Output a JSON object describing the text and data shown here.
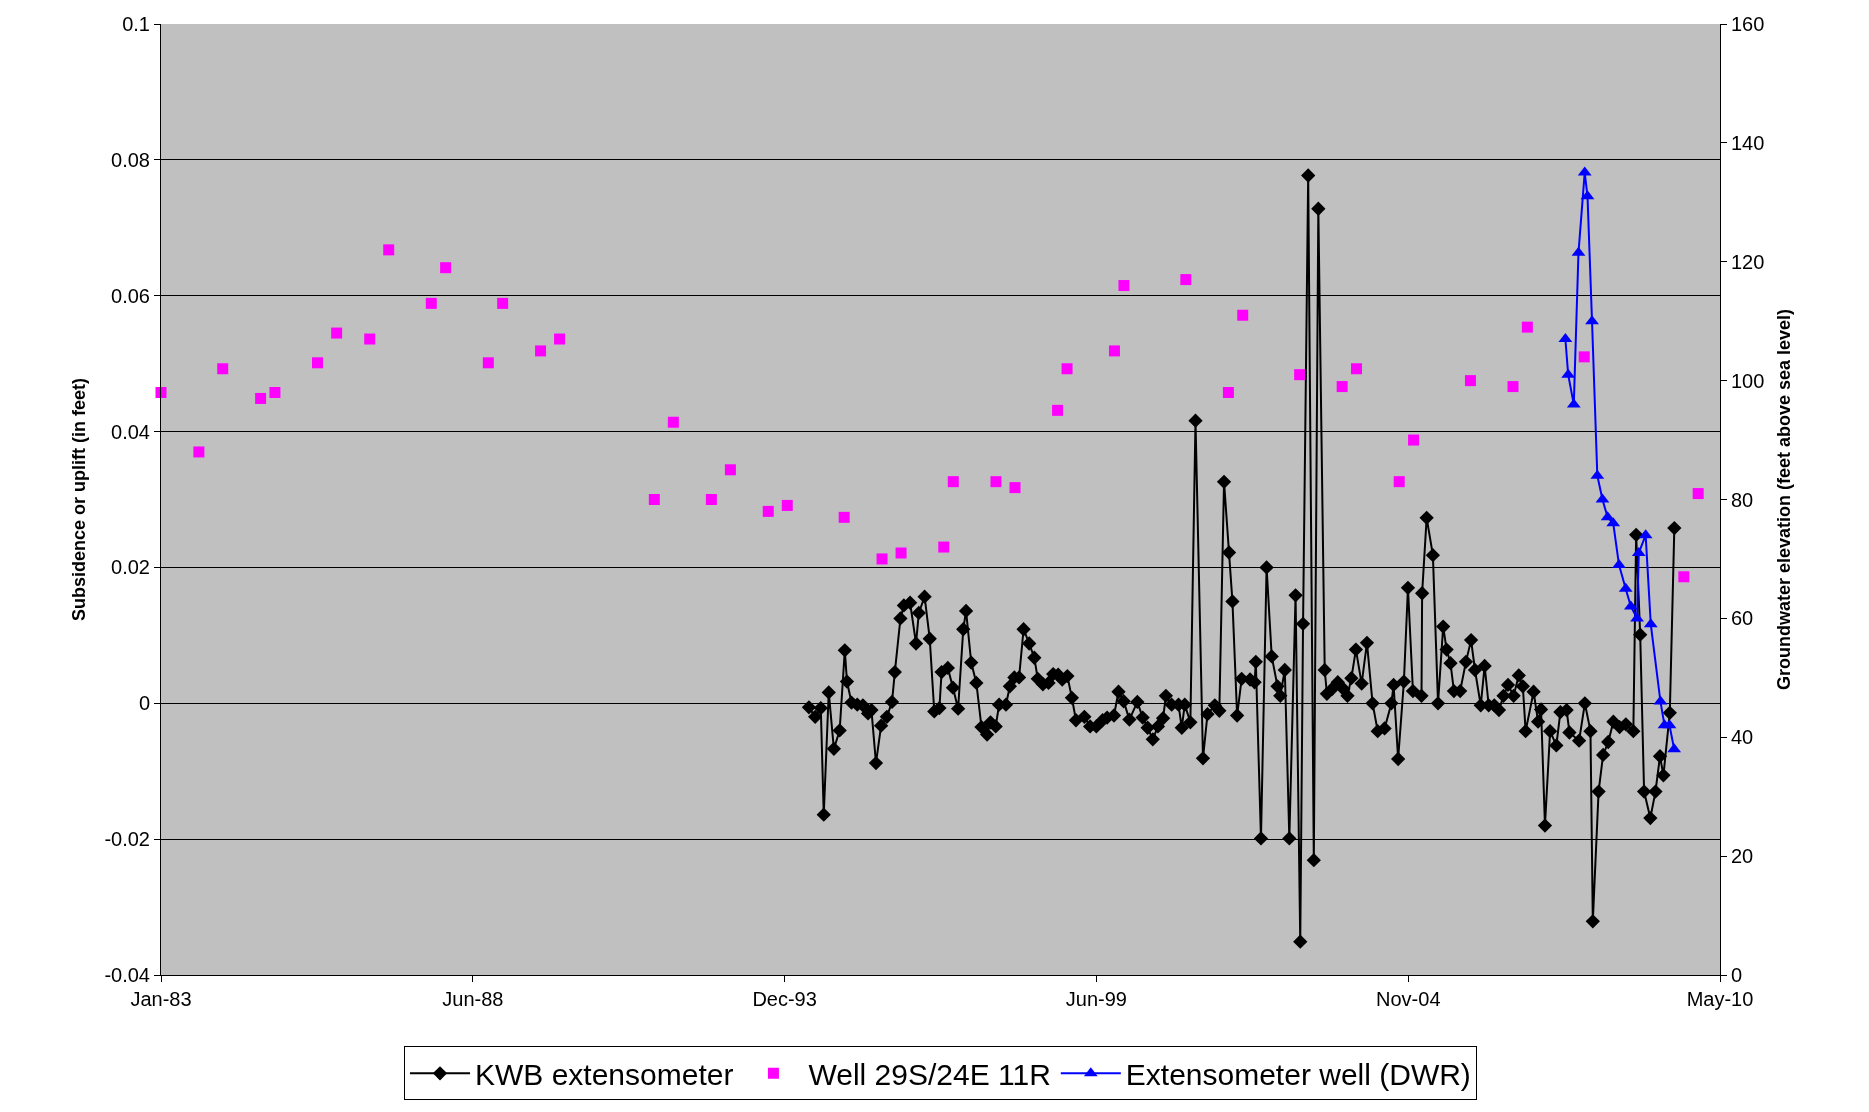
{
  "chart_data": {
    "type": "line",
    "xlabel": null,
    "ylabel": "Subsidence or uplift (in feet)",
    "y2label": "Groundwater elevation (feet above sea level)",
    "xlim": [
      "1983-01-01",
      "2010-05-21"
    ],
    "xticks": [
      {
        "value": "1983-01-01",
        "label": "Jan-83"
      },
      {
        "value": "1988-06-24",
        "label": "Jun-88"
      },
      {
        "value": "1993-12-15",
        "label": "Dec-93"
      },
      {
        "value": "1999-06-07",
        "label": "Jun-99"
      },
      {
        "value": "2004-11-28",
        "label": "Nov-04"
      },
      {
        "value": "2010-05-21",
        "label": "May-10"
      }
    ],
    "ylim": [
      -0.04,
      0.1
    ],
    "yticks": [
      -0.04,
      -0.02,
      0,
      0.02,
      0.04,
      0.06,
      0.08,
      0.1
    ],
    "y2lim": [
      0,
      160
    ],
    "y2ticks": [
      0,
      20,
      40,
      60,
      80,
      100,
      120,
      140,
      160
    ],
    "grid": "y",
    "legend": "bottom",
    "series": [
      {
        "name": "KWB extensometer",
        "marker": "diamond",
        "line_style": "solid",
        "color": "#000000",
        "x": [
          "1994-05-20",
          "1994-06-29",
          "1994-08-04",
          "1994-08-23",
          "1994-09-24",
          "1994-10-27",
          "1994-12-03",
          "1995-01-05",
          "1995-01-19",
          "1995-02-17",
          "1995-03-26",
          "1995-05-01",
          "1995-06-03",
          "1995-06-25",
          "1995-07-24",
          "1995-08-26",
          "1995-10-02",
          "1995-11-04",
          "1995-11-22",
          "1995-12-28",
          "1996-01-19",
          "1996-02-28",
          "1996-04-06",
          "1996-04-24",
          "1996-05-31",
          "1996-07-03",
          "1996-08-01",
          "1996-09-03",
          "1996-09-17",
          "1996-10-27",
          "1996-11-29",
          "1997-01-01",
          "1997-02-03",
          "1997-02-21",
          "1997-03-26",
          "1997-04-28",
          "1997-05-31",
          "1997-07-06",
          "1997-07-28",
          "1997-08-30",
          "1997-09-21",
          "1997-11-04",
          "1997-11-29",
          "1997-12-28",
          "1998-01-27",
          "1998-02-25",
          "1998-04-02",
          "1998-05-05",
          "1998-05-27",
          "1998-06-29",
          "1998-08-04",
          "1998-09-03",
          "1998-10-05",
          "1998-10-31",
          "1998-12-03",
          "1999-01-01",
          "1999-01-27",
          "1999-03-22",
          "1999-04-28",
          "1999-06-07",
          "1999-07-17",
          "1999-08-15",
          "1999-09-28",
          "1999-10-27",
          "1999-11-29",
          "2000-01-05",
          "2000-02-25",
          "2000-03-30",
          "2000-05-01",
          "2000-06-03",
          "2000-07-06",
          "2000-08-08",
          "2000-08-26",
          "2000-10-02",
          "2000-11-15",
          "2000-12-06",
          "2000-12-25",
          "2001-01-30",
          "2001-03-04",
          "2001-04-21",
          "2001-05-20",
          "2001-07-06",
          "2001-08-04",
          "2001-09-03",
          "2001-10-05",
          "2001-10-27",
          "2001-11-26",
          "2001-12-25",
          "2002-02-17",
          "2002-03-18",
          "2002-03-26",
          "2002-04-28",
          "2002-06-03",
          "2002-07-06",
          "2002-08-12",
          "2002-08-30",
          "2002-09-28",
          "2002-10-27",
          "2002-12-06",
          "2003-01-05",
          "2003-01-23",
          "2003-02-25",
          "2003-04-02",
          "2003-05-01",
          "2003-06-11",
          "2003-06-25",
          "2003-07-28",
          "2003-09-03",
          "2003-10-09",
          "2003-11-04",
          "2003-11-29",
          "2003-12-28",
          "2004-02-03",
          "2004-03-08",
          "2004-04-13",
          "2004-05-16",
          "2004-06-29",
          "2004-08-12",
          "2004-08-26",
          "2004-09-24",
          "2004-10-31",
          "2004-11-26",
          "2004-12-28",
          "2005-02-21",
          "2005-02-25",
          "2005-03-26",
          "2005-05-05",
          "2005-06-07",
          "2005-07-10",
          "2005-08-01",
          "2005-08-26",
          "2005-09-17",
          "2005-10-27",
          "2005-12-03",
          "2006-01-05",
          "2006-01-30",
          "2006-03-08",
          "2006-04-02",
          "2006-04-28",
          "2006-06-03",
          "2006-07-03",
          "2006-08-01",
          "2006-08-30",
          "2006-10-05",
          "2006-11-07",
          "2006-12-03",
          "2006-12-21",
          "2007-02-10",
          "2007-03-11",
          "2007-03-30",
          "2007-04-24",
          "2007-05-27",
          "2007-07-06",
          "2007-08-01",
          "2007-09-10",
          "2007-09-28",
          "2007-11-29",
          "2008-01-05",
          "2008-02-10",
          "2008-02-25",
          "2008-04-02",
          "2008-05-01",
          "2008-06-03",
          "2008-07-06",
          "2008-08-15",
          "2008-09-24",
          "2008-11-11",
          "2008-11-29",
          "2008-12-25",
          "2009-01-19",
          "2009-02-28",
          "2009-04-02",
          "2009-05-01",
          "2009-05-23",
          "2009-07-03",
          "2009-08-01"
        ],
        "values": [
          -0.0006,
          -0.002,
          -0.0007,
          -0.0164,
          0.0016,
          -0.0067,
          -0.004,
          0.0078,
          0.0032,
          0.0001,
          -0.0002,
          -0.0003,
          -0.0015,
          -0.001,
          -0.0088,
          -0.0033,
          -0.002,
          0.0002,
          0.0046,
          0.0125,
          0.0144,
          0.0148,
          0.0088,
          0.0133,
          0.0157,
          0.0095,
          -0.0012,
          -0.0007,
          0.0046,
          0.0052,
          0.0023,
          -0.0008,
          0.0109,
          0.0136,
          0.006,
          0.003,
          -0.0035,
          -0.0046,
          -0.0028,
          -0.0034,
          -0.0002,
          -0.0002,
          0.0025,
          0.0038,
          0.0038,
          0.0109,
          0.0088,
          0.0067,
          0.0036,
          0.0028,
          0.003,
          0.0043,
          0.0042,
          0.0035,
          0.004,
          0.0008,
          -0.0025,
          -0.002,
          -0.0034,
          -0.0034,
          -0.0025,
          -0.0021,
          -0.0018,
          0.0017,
          0.0003,
          -0.0024,
          0.0002,
          -0.0021,
          -0.0036,
          -0.0053,
          -0.0034,
          -0.0022,
          0.0011,
          -0.0002,
          -0.0002,
          -0.0036,
          -0.0002,
          -0.0028,
          0.0416,
          -0.0081,
          -0.0016,
          -0.0003,
          -0.0011,
          0.0326,
          0.0222,
          0.015,
          -0.0018,
          0.0036,
          0.0035,
          0.0031,
          0.0061,
          -0.0199,
          0.02,
          0.0069,
          0.0025,
          0.0011,
          0.0049,
          -0.0199,
          0.0159,
          -0.0351,
          0.0117,
          0.0777,
          -0.0231,
          0.0728,
          0.0049,
          0.0014,
          0.0021,
          0.0031,
          0.0021,
          0.0011,
          0.0037,
          0.0079,
          0.0029,
          0.0089,
          0,
          -0.0041,
          -0.0037,
          0,
          0.0027,
          -0.0082,
          0.0032,
          0.017,
          0.0018,
          0.0011,
          0.0162,
          0.0273,
          0.0218,
          0,
          0.0113,
          0.0079,
          0.0059,
          0.0018,
          0.0018,
          0.0061,
          0.0093,
          0.0049,
          -0.0003,
          0.0055,
          -0.0003,
          -0.0003,
          -0.001,
          0.0011,
          0.0027,
          0.0011,
          0.0041,
          0.0025,
          -0.0041,
          0.0017,
          -0.0027,
          -0.0009,
          -0.018,
          -0.0041,
          -0.0062,
          -0.0013,
          -0.001,
          -0.0043,
          -0.0055,
          0,
          -0.0041,
          -0.0321,
          -0.013,
          -0.0076,
          -0.0057,
          -0.0027,
          -0.0035,
          -0.0031,
          -0.0041,
          0.0248,
          0.0101,
          -0.013,
          -0.0169,
          -0.013,
          -0.0078,
          -0.0106,
          -0.0014,
          0.0258
        ]
      },
      {
        "name": "Well 29S/24E 11R",
        "type": "scatter",
        "marker": "square",
        "axis": "y2",
        "color": "#ff00ff",
        "x": [
          "1983-01",
          "1983-09",
          "1984-02",
          "1984-10",
          "1985-01",
          "1985-10",
          "1986-02",
          "1986-09",
          "1987-01",
          "1987-10",
          "1988-01",
          "1988-10",
          "1989-01",
          "1989-09",
          "1990-01",
          "1991-09",
          "1992-01",
          "1992-09",
          "1993-01",
          "1993-09",
          "1994-01",
          "1995-01",
          "1995-09",
          "1996-01",
          "1996-10",
          "1996-12",
          "1997-09",
          "1998-01",
          "1998-10",
          "1998-12",
          "1999-10",
          "1999-12",
          "2001-01",
          "2001-10",
          "2002-01",
          "2003-01",
          "2003-10",
          "2004-01",
          "2004-10",
          "2005-01",
          "2006-01",
          "2006-10",
          "2007-01",
          "2008-01",
          "2009-10",
          "2010-01"
        ],
        "values": [
          98,
          88,
          102,
          97,
          98,
          103,
          108,
          107,
          122,
          113,
          119,
          103,
          113,
          105,
          107,
          80,
          93,
          80,
          85,
          78,
          79,
          77,
          70,
          71,
          72,
          83,
          83,
          82,
          95,
          102,
          105,
          116,
          117,
          98,
          111,
          101,
          99,
          102,
          83,
          90,
          100,
          99,
          109,
          104,
          67,
          81
        ]
      },
      {
        "name": "Extensometer well (DWR)",
        "marker": "triangle",
        "line_style": "solid",
        "axis": "y2",
        "color": "#0000ff",
        "x": [
          "2007-09-02",
          "2007-09-20",
          "2007-10-26",
          "2007-11-25",
          "2008-01-04",
          "2008-01-22",
          "2008-02-20",
          "2008-03-25",
          "2008-04-27",
          "2008-05-30",
          "2008-07-05",
          "2008-08-11",
          "2008-09-23",
          "2008-10-26",
          "2008-12-05",
          "2008-12-16",
          "2009-01-29",
          "2009-03-03",
          "2009-05-04",
          "2009-05-30",
          "2009-07-01",
          "2009-07-31"
        ],
        "values": [
          107,
          101,
          96,
          121.5,
          135,
          131,
          110,
          84,
          80,
          77,
          76,
          69,
          65,
          62,
          60,
          71,
          74,
          59,
          46,
          42,
          42,
          38
        ]
      }
    ]
  }
}
